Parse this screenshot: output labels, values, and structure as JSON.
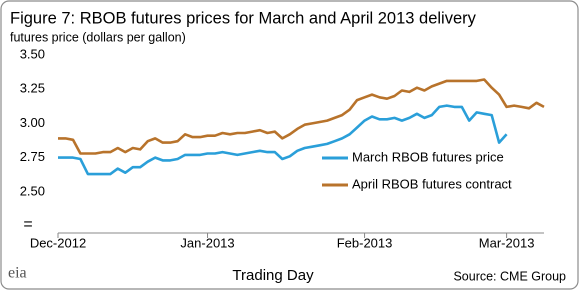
{
  "chart_data": {
    "type": "line",
    "title": "Figure 7: RBOB futures prices for March and April 2013 delivery",
    "subtitle": "futures price (dollars per gallon)",
    "x_label": "Trading Day",
    "source": "Source: CME Group",
    "logo": "eia",
    "legend": "right",
    "grid": false,
    "categories": [
      "Dec-2012",
      null,
      null,
      null,
      null,
      null,
      null,
      null,
      null,
      null,
      null,
      null,
      null,
      null,
      null,
      null,
      null,
      null,
      null,
      null,
      "Jan-2013",
      null,
      null,
      null,
      null,
      null,
      null,
      null,
      null,
      null,
      null,
      null,
      null,
      null,
      null,
      null,
      null,
      null,
      null,
      null,
      null,
      "Feb-2013",
      null,
      null,
      null,
      null,
      null,
      null,
      null,
      null,
      null,
      null,
      null,
      null,
      null,
      null,
      null,
      null,
      null,
      null,
      "Mar-2013",
      null,
      null,
      null,
      null,
      null
    ],
    "ylim": [
      2.2,
      3.55
    ],
    "yticks": [
      {
        "value": 2.5,
        "label": "2.50"
      },
      {
        "value": 2.75,
        "label": "2.75"
      },
      {
        "value": 3.0,
        "label": "3.00"
      },
      {
        "value": 3.25,
        "label": "3.25"
      },
      {
        "value": 3.5,
        "label": "3.50"
      }
    ],
    "series": [
      {
        "name": "March RBOB futures price",
        "color": "#2a9fd9",
        "values": [
          2.75,
          2.75,
          2.75,
          2.74,
          2.63,
          2.63,
          2.63,
          2.63,
          2.67,
          2.64,
          2.68,
          2.68,
          2.72,
          2.75,
          2.73,
          2.73,
          2.74,
          2.77,
          2.77,
          2.77,
          2.78,
          2.78,
          2.79,
          2.78,
          2.77,
          2.78,
          2.79,
          2.8,
          2.79,
          2.79,
          2.74,
          2.76,
          2.8,
          2.82,
          2.83,
          2.84,
          2.85,
          2.87,
          2.89,
          2.92,
          2.97,
          3.02,
          3.05,
          3.03,
          3.03,
          3.04,
          3.02,
          3.04,
          3.07,
          3.04,
          3.06,
          3.12,
          3.13,
          3.12,
          3.12,
          3.02,
          3.08,
          3.07,
          3.06,
          2.86,
          2.92,
          null,
          null,
          null,
          null,
          null
        ]
      },
      {
        "name": "April RBOB futures contract",
        "color": "#b8732b",
        "values": [
          2.89,
          2.89,
          2.88,
          2.78,
          2.78,
          2.78,
          2.79,
          2.79,
          2.82,
          2.79,
          2.82,
          2.81,
          2.87,
          2.89,
          2.86,
          2.86,
          2.87,
          2.92,
          2.9,
          2.9,
          2.91,
          2.91,
          2.93,
          2.92,
          2.93,
          2.93,
          2.94,
          2.95,
          2.93,
          2.94,
          2.89,
          2.92,
          2.96,
          2.99,
          3.0,
          3.01,
          3.02,
          3.04,
          3.06,
          3.1,
          3.17,
          3.19,
          3.21,
          3.19,
          3.18,
          3.2,
          3.24,
          3.23,
          3.26,
          3.24,
          3.27,
          3.29,
          3.31,
          3.31,
          3.31,
          3.31,
          3.31,
          3.32,
          3.26,
          3.21,
          3.12,
          3.13,
          3.12,
          3.11,
          3.15,
          3.12
        ]
      }
    ]
  }
}
